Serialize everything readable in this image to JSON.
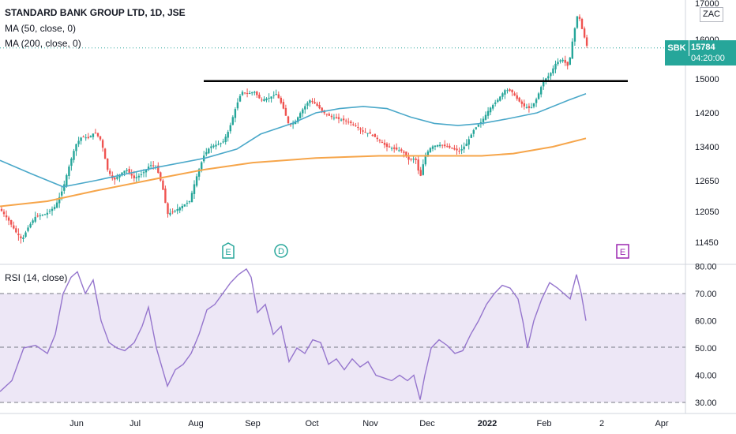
{
  "header": {
    "title": "STANDARD BANK GROUP LTD, 1D, JSE",
    "ma50_label": "MA (50, close, 0)",
    "ma200_label": "MA (200, close, 0)",
    "rsi_label": "RSI (14, close)",
    "currency": "ZAC"
  },
  "last_price": {
    "symbol": "SBK",
    "price": "15784",
    "countdown": "04:20:00"
  },
  "colors": {
    "up": "#26a69a",
    "down": "#ef5350",
    "ma50": "#4aa8c9",
    "ma200": "#f6a54a",
    "rsi_line": "#9575cd",
    "rsi_band": "#ede7f6",
    "resistance": "#000000"
  },
  "chart_data": [
    {
      "type": "candlestick",
      "title": "STANDARD BANK GROUP LTD, 1D, JSE",
      "y_ticks": [
        "17000",
        "16000",
        "15000",
        "14200",
        "13400",
        "12650",
        "12050",
        "11450"
      ],
      "x_ticks": [
        "Jun",
        "Jul",
        "Aug",
        "Sep",
        "Oct",
        "Nov",
        "Dec",
        "2022",
        "Feb",
        "2",
        "Apr"
      ],
      "series": [
        {
          "name": "MA (50, close, 0)",
          "points": [
            [
              0,
              13100
            ],
            [
              40,
              12800
            ],
            [
              80,
              12530
            ],
            [
              120,
              12650
            ],
            [
              160,
              12800
            ],
            [
              200,
              12950
            ],
            [
              260,
              13150
            ],
            [
              300,
              13350
            ],
            [
              330,
              13700
            ],
            [
              370,
              13950
            ],
            [
              400,
              14200
            ],
            [
              430,
              14300
            ],
            [
              460,
              14350
            ],
            [
              490,
              14300
            ],
            [
              520,
              14100
            ],
            [
              550,
              13950
            ],
            [
              580,
              13900
            ],
            [
              610,
              13950
            ],
            [
              640,
              14050
            ],
            [
              680,
              14200
            ],
            [
              720,
              14500
            ],
            [
              742,
              14650
            ]
          ]
        },
        {
          "name": "MA (200, close, 0)",
          "points": [
            [
              0,
              12150
            ],
            [
              60,
              12250
            ],
            [
              120,
              12450
            ],
            [
              200,
              12700
            ],
            [
              260,
              12900
            ],
            [
              320,
              13050
            ],
            [
              400,
              13150
            ],
            [
              480,
              13200
            ],
            [
              560,
              13200
            ],
            [
              610,
              13200
            ],
            [
              650,
              13250
            ],
            [
              700,
              13400
            ],
            [
              742,
              13600
            ]
          ]
        }
      ],
      "resistance_level": 14950,
      "annotations": [
        "E",
        "D",
        "E"
      ]
    },
    {
      "type": "line",
      "title": "RSI (14, close)",
      "y_ticks": [
        "80.00",
        "70.00",
        "60.00",
        "50.00",
        "40.00",
        "30.00"
      ],
      "bands": [
        70,
        50,
        30
      ],
      "series": [
        {
          "name": "RSI (14, close)",
          "points": [
            [
              0,
              34
            ],
            [
              15,
              38
            ],
            [
              30,
              50
            ],
            [
              45,
              51
            ],
            [
              60,
              48
            ],
            [
              70,
              55
            ],
            [
              80,
              70
            ],
            [
              90,
              76
            ],
            [
              98,
              78
            ],
            [
              108,
              70
            ],
            [
              118,
              75
            ],
            [
              128,
              60
            ],
            [
              138,
              52
            ],
            [
              148,
              50
            ],
            [
              158,
              49
            ],
            [
              170,
              52
            ],
            [
              180,
              58
            ],
            [
              188,
              65
            ],
            [
              198,
              50
            ],
            [
              206,
              42
            ],
            [
              212,
              36
            ],
            [
              222,
              42
            ],
            [
              232,
              44
            ],
            [
              242,
              48
            ],
            [
              252,
              55
            ],
            [
              262,
              64
            ],
            [
              272,
              66
            ],
            [
              282,
              70
            ],
            [
              292,
              74
            ],
            [
              302,
              77
            ],
            [
              312,
              79
            ],
            [
              318,
              76
            ],
            [
              326,
              63
            ],
            [
              336,
              66
            ],
            [
              346,
              55
            ],
            [
              356,
              58
            ],
            [
              366,
              45
            ],
            [
              376,
              50
            ],
            [
              386,
              48
            ],
            [
              396,
              53
            ],
            [
              406,
              52
            ],
            [
              416,
              44
            ],
            [
              426,
              46
            ],
            [
              436,
              42
            ],
            [
              446,
              46
            ],
            [
              456,
              43
            ],
            [
              466,
              45
            ],
            [
              476,
              40
            ],
            [
              486,
              39
            ],
            [
              496,
              38
            ],
            [
              506,
              40
            ],
            [
              516,
              38
            ],
            [
              524,
              40
            ],
            [
              532,
              31
            ],
            [
              538,
              40
            ],
            [
              546,
              50
            ],
            [
              556,
              53
            ],
            [
              566,
              51
            ],
            [
              576,
              48
            ],
            [
              586,
              49
            ],
            [
              596,
              55
            ],
            [
              606,
              60
            ],
            [
              616,
              66
            ],
            [
              626,
              70
            ],
            [
              636,
              73
            ],
            [
              646,
              72
            ],
            [
              656,
              68
            ],
            [
              662,
              60
            ],
            [
              668,
              50
            ],
            [
              676,
              60
            ],
            [
              686,
              68
            ],
            [
              696,
              74
            ],
            [
              706,
              72
            ],
            [
              714,
              70
            ],
            [
              722,
              68
            ],
            [
              730,
              77
            ],
            [
              736,
              70
            ],
            [
              742,
              60
            ]
          ]
        }
      ]
    }
  ]
}
